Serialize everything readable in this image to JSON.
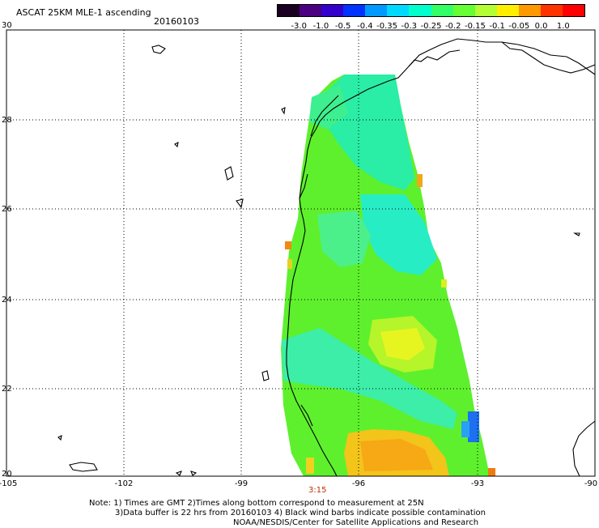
{
  "header": {
    "title": "ASCAT 25KM MLE-1 ascending",
    "date": "20160103"
  },
  "colorbar": {
    "labels": [
      "-3.0",
      "-1.0",
      "-0.5",
      "-0.4",
      "-0.35",
      "-0.3",
      "-0.25",
      "-0.2",
      "-0.15",
      "-0.1",
      "-0.05",
      "0.0",
      "1.0"
    ],
    "colors": [
      "#1a0021",
      "#4b0082",
      "#3300cc",
      "#0033ff",
      "#0099ff",
      "#00d9ff",
      "#00ffcc",
      "#33ff66",
      "#66ff33",
      "#b3ff33",
      "#ffee00",
      "#ff9900",
      "#ff3300",
      "#ff0000"
    ]
  },
  "axes": {
    "y_ticks": [
      "30",
      "28",
      "26",
      "24",
      "22",
      "20"
    ],
    "x_ticks": [
      "-105",
      "-102",
      "-99",
      "-96",
      "-93",
      "-90"
    ]
  },
  "time_label": "3:15",
  "notes": {
    "line1": "Note: 1) Times are GMT 2)Times along bottom correspond to measurement at 25N",
    "line2": "3)Data buffer is 22 hrs from 20160103 4) Black wind barbs indicate possible contamination",
    "line3": "NOAA/NESDIS/Center for Satellite Applications and Research"
  }
}
